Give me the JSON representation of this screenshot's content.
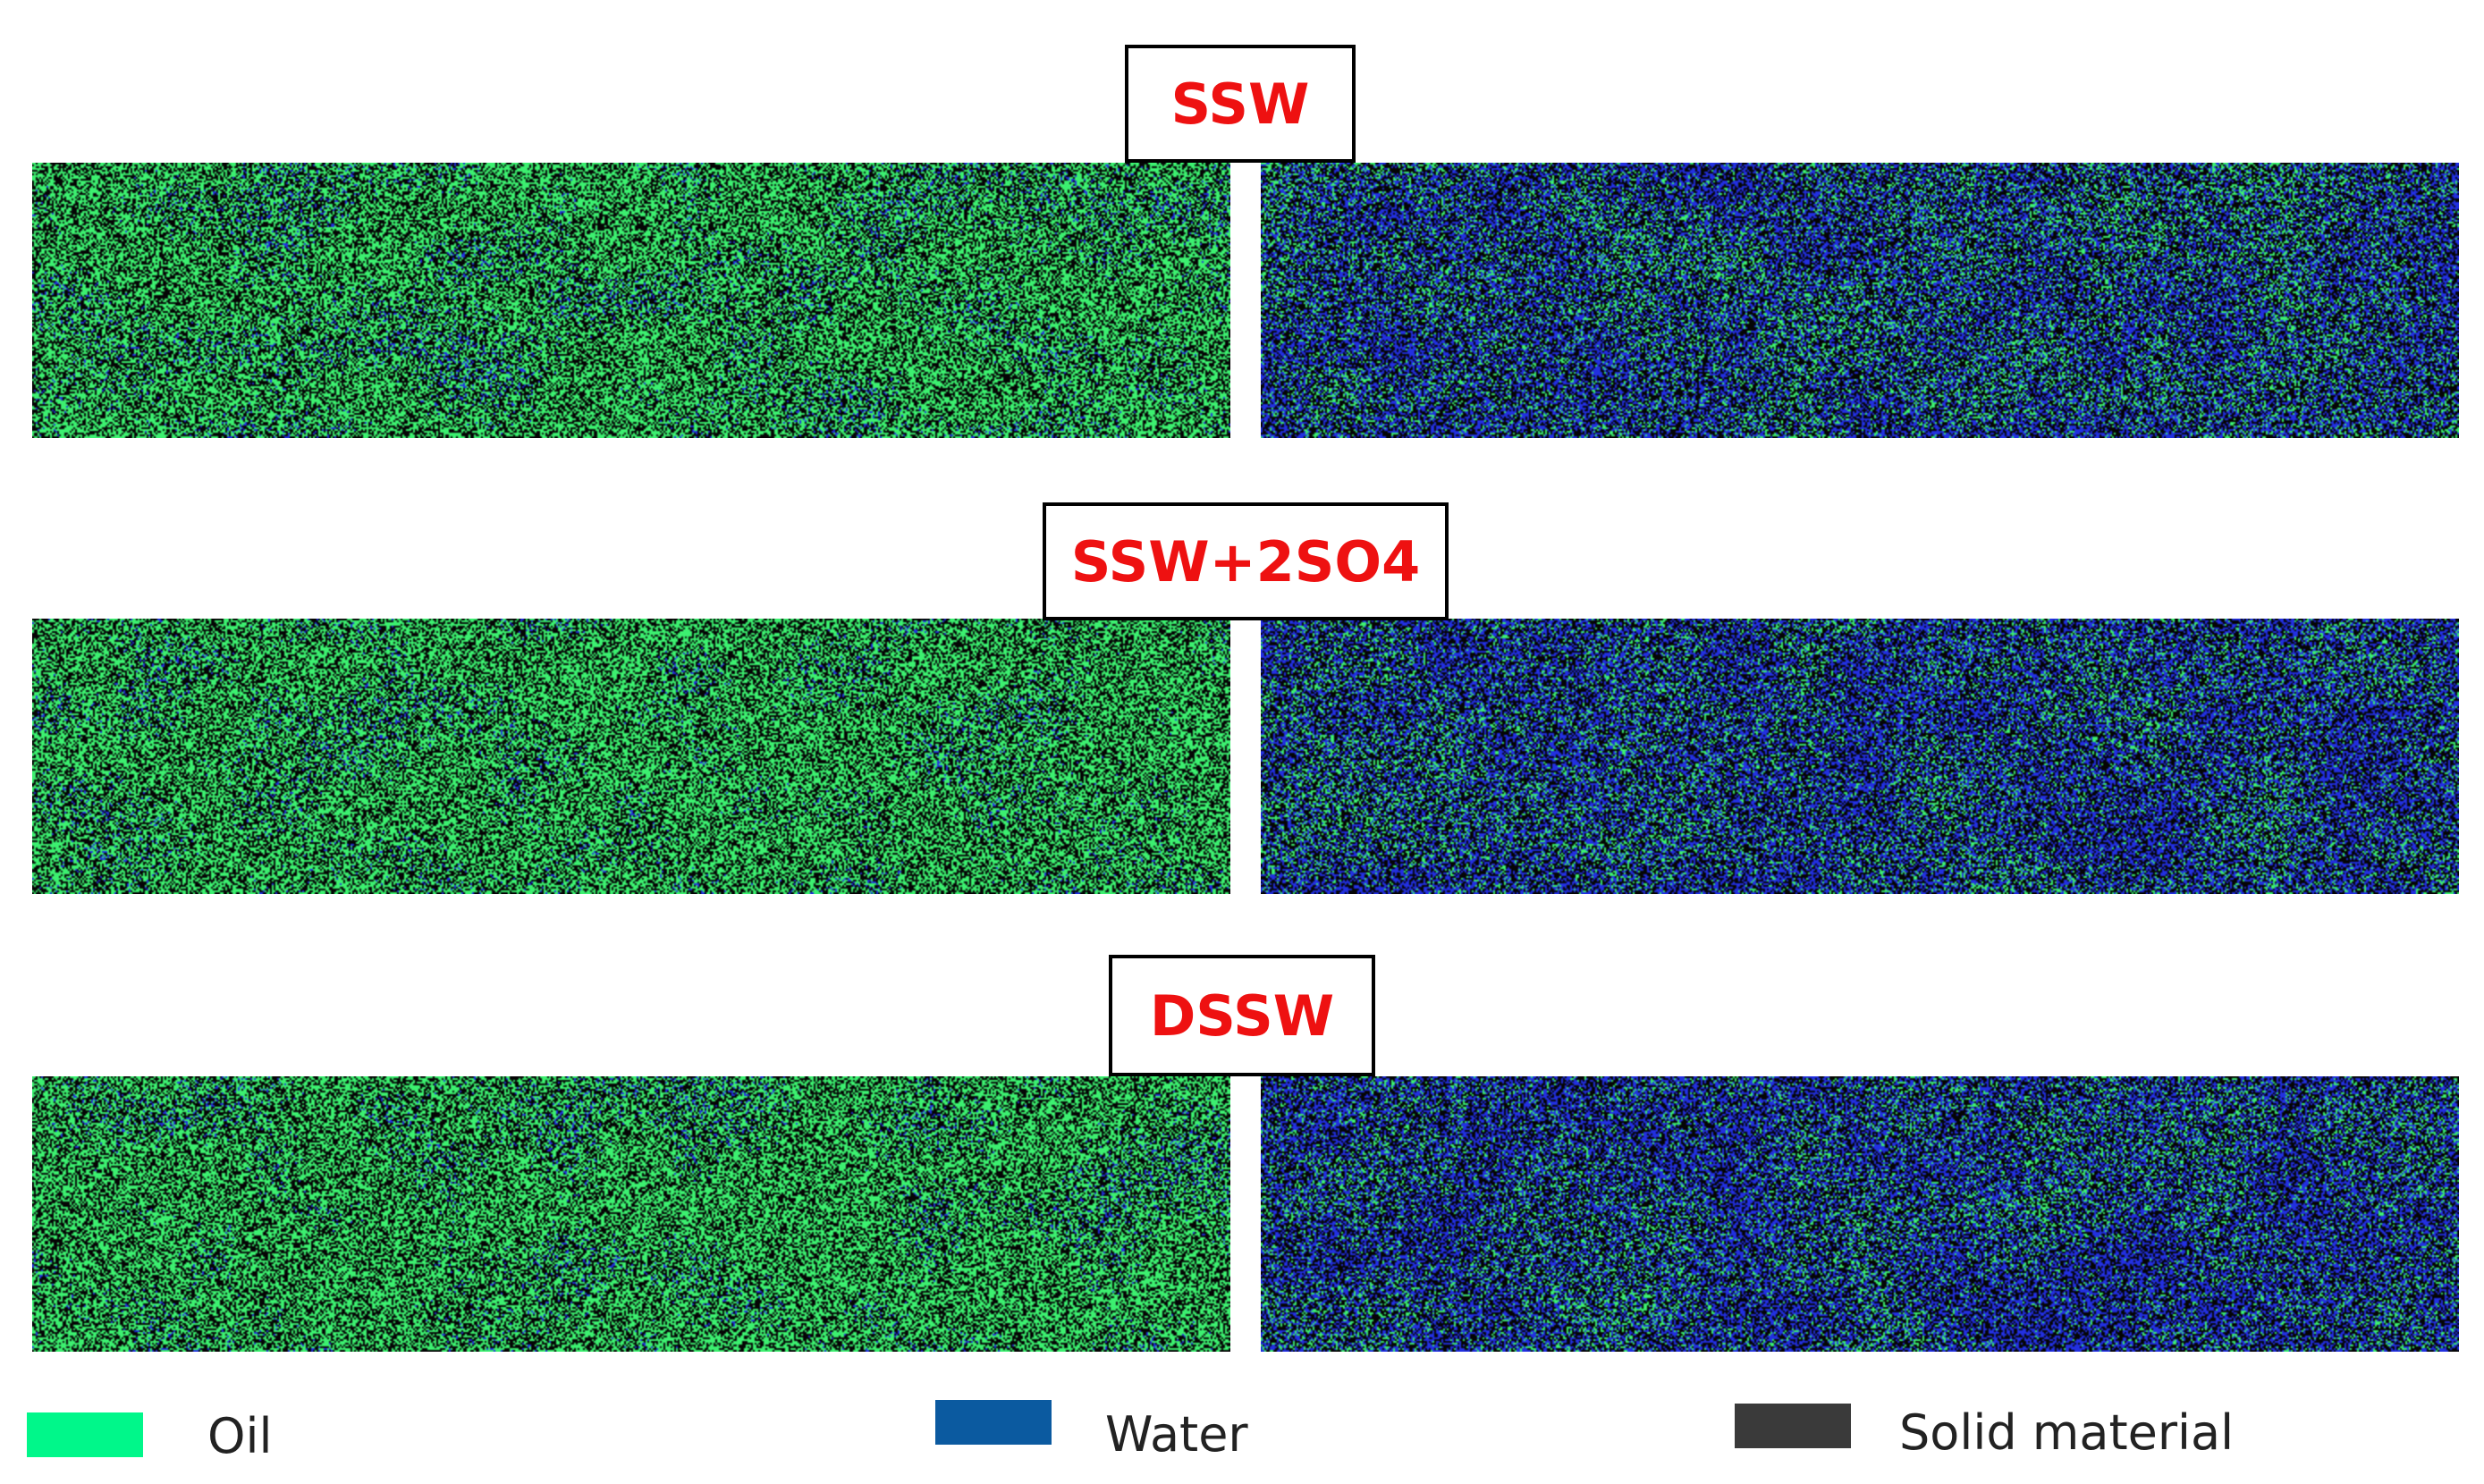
{
  "figure": {
    "rows": [
      {
        "label": "SSW",
        "panels": [
          {
            "name": "left",
            "oil_fraction": 0.92
          },
          {
            "name": "right",
            "oil_fraction": 0.35
          }
        ]
      },
      {
        "label": "SSW+2SO4",
        "panels": [
          {
            "name": "left",
            "oil_fraction": 0.95
          },
          {
            "name": "right",
            "oil_fraction": 0.3
          }
        ]
      },
      {
        "label": "DSSW",
        "panels": [
          {
            "name": "left",
            "oil_fraction": 0.95
          },
          {
            "name": "right",
            "oil_fraction": 0.28
          }
        ]
      }
    ],
    "legend": [
      {
        "label": "Oil",
        "color": "#00f78a"
      },
      {
        "label": "Water",
        "color": "#0b5aa0"
      },
      {
        "label": "Solid material",
        "color": "#3a3a3a"
      }
    ],
    "colors": {
      "oil_pixel": "#3cf070",
      "water_pixel": "#2230e0",
      "solid_pixel": "#050505",
      "label_text": "#ee1111"
    }
  }
}
